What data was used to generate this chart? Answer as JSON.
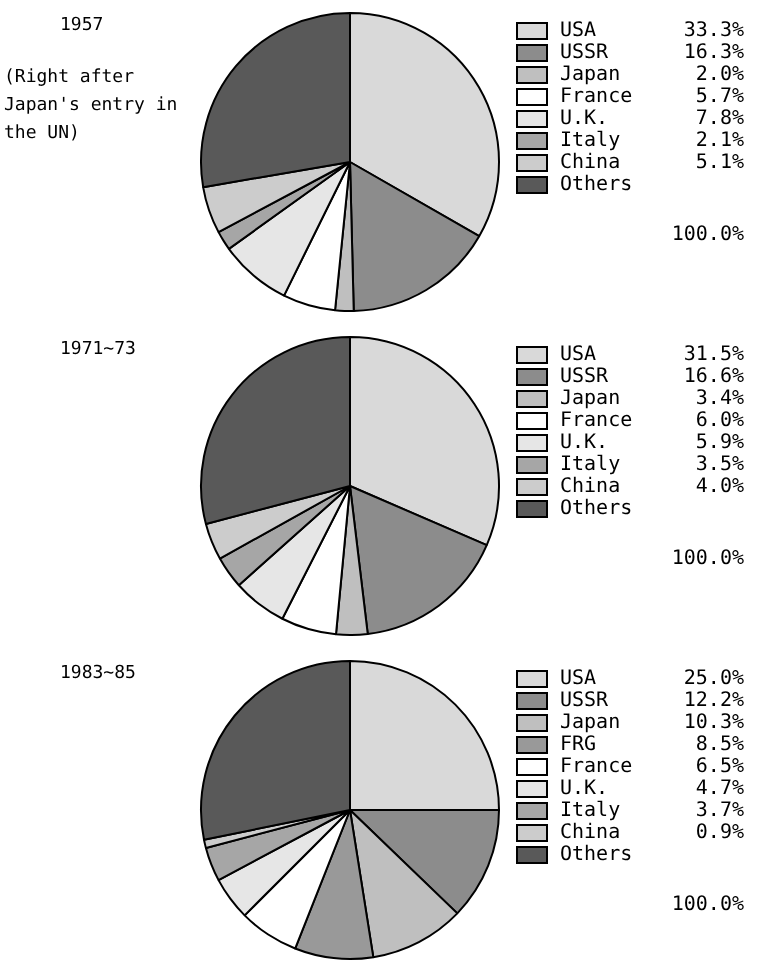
{
  "chart_data": [
    {
      "type": "pie",
      "title": "1957",
      "subtitle": "(Right after Japan's entry in the UN)",
      "legend": "right",
      "categories": [
        "USA",
        "USSR",
        "Japan",
        "France",
        "U.K.",
        "Italy",
        "China",
        "Others"
      ],
      "values": [
        33.3,
        16.3,
        2.0,
        5.7,
        7.8,
        2.1,
        5.1,
        27.7
      ],
      "value_labels": [
        "33.3%",
        "16.3%",
        "2.0%",
        "5.7%",
        "7.8%",
        "2.1%",
        "5.1%",
        null
      ],
      "colors": [
        "#d9d9d9",
        "#8c8c8c",
        "#bfbfbf",
        "#ffffff",
        "#e6e6e6",
        "#a6a6a6",
        "#cccccc",
        "#595959"
      ],
      "annotations": [
        "100.0%"
      ]
    },
    {
      "type": "pie",
      "title": "1971~73",
      "legend": "right",
      "categories": [
        "USA",
        "USSR",
        "Japan",
        "France",
        "U.K.",
        "Italy",
        "China",
        "Others"
      ],
      "values": [
        31.5,
        16.6,
        3.4,
        6.0,
        5.9,
        3.5,
        4.0,
        29.1
      ],
      "value_labels": [
        "31.5%",
        "16.6%",
        "3.4%",
        "6.0%",
        "5.9%",
        "3.5%",
        "4.0%",
        null
      ],
      "colors": [
        "#d9d9d9",
        "#8c8c8c",
        "#bfbfbf",
        "#ffffff",
        "#e6e6e6",
        "#a6a6a6",
        "#cccccc",
        "#595959"
      ],
      "annotations": [
        "100.0%"
      ]
    },
    {
      "type": "pie",
      "title": "1983~85",
      "legend": "right",
      "categories": [
        "USA",
        "USSR",
        "Japan",
        "FRG",
        "France",
        "U.K.",
        "Italy",
        "China",
        "Others"
      ],
      "values": [
        25.0,
        12.2,
        10.3,
        8.5,
        6.5,
        4.7,
        3.7,
        0.9,
        28.2
      ],
      "value_labels": [
        "25.0%",
        "12.2%",
        "10.3%",
        "8.5%",
        "6.5%",
        "4.7%",
        "3.7%",
        "0.9%",
        null
      ],
      "colors": [
        "#d9d9d9",
        "#8c8c8c",
        "#bfbfbf",
        "#999999",
        "#ffffff",
        "#e6e6e6",
        "#a6a6a6",
        "#cccccc",
        "#595959"
      ],
      "annotations": [
        "100.0%"
      ]
    }
  ]
}
